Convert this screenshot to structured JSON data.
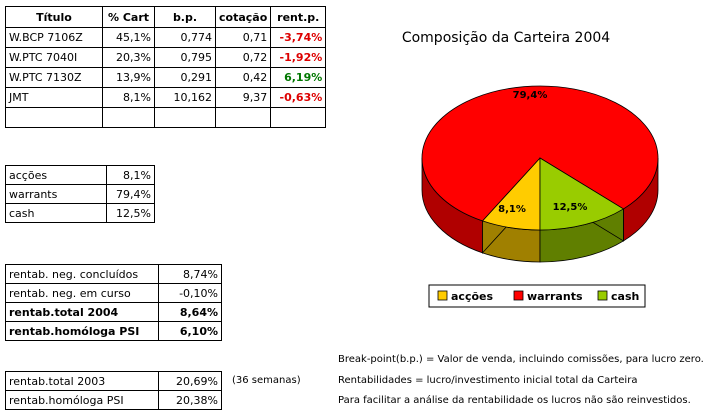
{
  "holdings": {
    "headers": [
      "Título",
      "% Cart",
      "b.p.",
      "cotação",
      "rent.p."
    ],
    "rows": [
      [
        "W.BCP 7106Z",
        "45,1%",
        "0,774",
        "0,71",
        "-3,74%"
      ],
      [
        "W.PTC 7040I",
        "20,3%",
        "0,795",
        "0,72",
        "-1,92%"
      ],
      [
        "W.PTC 7130Z",
        "13,9%",
        "0,291",
        "0,42",
        "6,19%"
      ],
      [
        "JMT",
        "8,1%",
        "10,162",
        "9,37",
        "-0,63%"
      ]
    ]
  },
  "allocation": [
    [
      "acções",
      "8,1%"
    ],
    [
      "warrants",
      "79,4%"
    ],
    [
      "cash",
      "12,5%"
    ]
  ],
  "rentab": [
    [
      "rentab. neg. concluídos",
      "8,74%"
    ],
    [
      "rentab. neg. em curso",
      "-0,10%"
    ],
    [
      "rentab.total 2004",
      "8,64%"
    ],
    [
      "rentab.homóloga PSI",
      "6,10%"
    ]
  ],
  "rentab2003": [
    [
      "rentab.total 2003",
      "20,69%"
    ],
    [
      "rentab.homóloga PSI",
      "20,38%"
    ]
  ],
  "weeks_note": "(36 semanas)",
  "notes": [
    "Break-point(b.p.) = Valor de venda, incluindo comissões, para lucro zero.",
    "Rentabilidades = lucro/investimento inicial total da Carteira",
    "Para facilitar a análise da rentabilidade os lucros não são reinvestidos."
  ],
  "colors": {
    "accoes": "#ffcc00",
    "warrants": "#ff0000",
    "cash": "#99cc00",
    "negative": "#dd0000",
    "positive": "#007700"
  },
  "chart_data": {
    "type": "pie",
    "title": "Composição da Carteira 2004",
    "categories": [
      "acções",
      "warrants",
      "cash"
    ],
    "values": [
      8.1,
      79.4,
      12.5
    ],
    "data_labels": [
      "8,1%",
      "79,4%",
      "12,5%"
    ],
    "legend_position": "bottom",
    "style": "3d"
  }
}
